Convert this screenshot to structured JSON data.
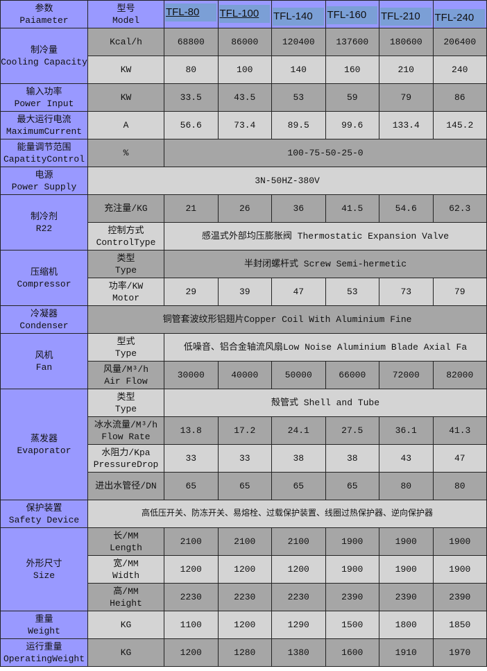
{
  "header": {
    "param_cn": "参数",
    "param_en": "Paiameter",
    "model_cn": "型号",
    "model_en": "Model",
    "models": [
      "TFL-80",
      "TFL-100",
      "TFL-140",
      "TFL-160",
      "TFL-210",
      "TFL-240"
    ]
  },
  "colors": {
    "group_bg": "#9999ff",
    "row_dark": "#a6a6a6",
    "row_light": "#d4d4d4",
    "model_highlight": "#7b9fd6"
  },
  "groups": [
    {
      "cn": "制冷量",
      "en": "Cooling Capacity",
      "rows": [
        {
          "unit": [
            "Kcal/h"
          ],
          "values": [
            "68800",
            "86000",
            "120400",
            "137600",
            "180600",
            "206400"
          ]
        },
        {
          "unit": [
            "KW"
          ],
          "values": [
            "80",
            "100",
            "140",
            "160",
            "210",
            "240"
          ]
        }
      ]
    },
    {
      "cn": "输入功率",
      "en": "Power Input",
      "rows": [
        {
          "unit": [
            "KW"
          ],
          "values": [
            "33.5",
            "43.5",
            "53",
            "59",
            "79",
            "86"
          ]
        }
      ]
    },
    {
      "cn": "最大运行电流",
      "en": "MaximumCurrent",
      "rows": [
        {
          "unit": [
            "A"
          ],
          "values": [
            "56.6",
            "73.4",
            "89.5",
            "99.6",
            "133.4",
            "145.2"
          ]
        }
      ]
    },
    {
      "cn": "能量调节范围",
      "en": "CapatityControl",
      "rows": [
        {
          "unit": [
            "%"
          ],
          "span": "100-75-50-25-0"
        }
      ]
    },
    {
      "cn": "电源",
      "en": "Power Supply",
      "rows": [
        {
          "full": "3N-50HZ-380V"
        }
      ]
    },
    {
      "cn": "制冷剂",
      "en": "R22",
      "rows": [
        {
          "unit": [
            "充注量/KG"
          ],
          "values": [
            "21",
            "26",
            "36",
            "41.5",
            "54.6",
            "62.3"
          ]
        },
        {
          "unit": [
            "控制方式",
            "ControlType"
          ],
          "span": "感温式外部均压膨胀阀 Thermostatic Expansion Valve"
        }
      ]
    },
    {
      "cn": "压缩机",
      "en": "Compressor",
      "rows": [
        {
          "unit": [
            "类型",
            "Type"
          ],
          "span": "半封闭螺杆式 Screw Semi-hermetic"
        },
        {
          "unit": [
            "功率/KW",
            "Motor"
          ],
          "values": [
            "29",
            "39",
            "47",
            "53",
            "73",
            "79"
          ]
        }
      ]
    },
    {
      "cn": "冷凝器",
      "en": "Condenser",
      "rows": [
        {
          "full": "铜管套波纹形铝翅片Copper Coil With Aluminium Fine"
        }
      ]
    },
    {
      "cn": "风机",
      "en": "Fan",
      "rows": [
        {
          "unit": [
            "型式",
            "Type"
          ],
          "span": "低噪音、铝合金轴流风扇Low Noise Aluminium Blade Axial Fa"
        },
        {
          "unit": [
            "风量/M³/h",
            "Air Flow"
          ],
          "values": [
            "30000",
            "40000",
            "50000",
            "66000",
            "72000",
            "82000"
          ]
        }
      ]
    },
    {
      "cn": "蒸发器",
      "en": "Evaporator",
      "rows": [
        {
          "unit": [
            "类型",
            "Type"
          ],
          "span": "殻管式  Shell and Tube"
        },
        {
          "unit": [
            "冰水流量/M³/h",
            "Flow Rate"
          ],
          "values": [
            "13.8",
            "17.2",
            "24.1",
            "27.5",
            "36.1",
            "41.3"
          ]
        },
        {
          "unit": [
            "水阻力/Kpa",
            "PressureDrop"
          ],
          "values": [
            "33",
            "33",
            "38",
            "38",
            "43",
            "47"
          ]
        },
        {
          "unit": [
            "进出水管径/DN"
          ],
          "values": [
            "65",
            "65",
            "65",
            "65",
            "80",
            "80"
          ]
        }
      ]
    },
    {
      "cn": "保护装置",
      "en": "Safety Device",
      "rows": [
        {
          "full": "高低压开关、防冻开关、易熔栓、过载保护装置、线圈过热保护器、逆向保护器",
          "small": true
        }
      ]
    },
    {
      "cn": "外形尺寸",
      "en": "Size",
      "rows": [
        {
          "unit": [
            "长/MM",
            "Length"
          ],
          "values": [
            "2100",
            "2100",
            "2100",
            "1900",
            "1900",
            "1900"
          ]
        },
        {
          "unit": [
            "宽/MM",
            "Width"
          ],
          "values": [
            "1200",
            "1200",
            "1200",
            "1900",
            "1900",
            "1900"
          ]
        },
        {
          "unit": [
            "高/MM",
            "Height"
          ],
          "values": [
            "2230",
            "2230",
            "2230",
            "2390",
            "2390",
            "2390"
          ]
        }
      ]
    },
    {
      "cn": "重量",
      "en": "Weight",
      "rows": [
        {
          "unit": [
            "KG"
          ],
          "values": [
            "1100",
            "1200",
            "1290",
            "1500",
            "1800",
            "1850"
          ]
        }
      ]
    },
    {
      "cn": "运行重量",
      "en": "OperatingWeight",
      "rows": [
        {
          "unit": [
            "KG"
          ],
          "values": [
            "1200",
            "1280",
            "1380",
            "1600",
            "1910",
            "1970"
          ]
        }
      ]
    }
  ]
}
